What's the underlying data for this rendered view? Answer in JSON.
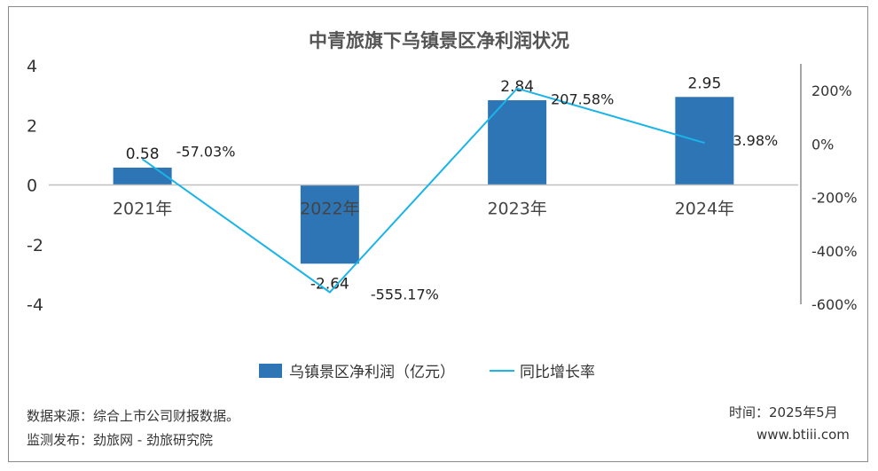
{
  "chart_data": {
    "type": "bar+line",
    "title": "中青旅旗下乌镇景区净利润状况",
    "categories": [
      "2021年",
      "2022年",
      "2023年",
      "2024年"
    ],
    "series": [
      {
        "name": "乌镇景区净利润（亿元）",
        "kind": "bar",
        "axis": "left",
        "color": "#2e75b6",
        "values": [
          0.58,
          -2.64,
          2.84,
          2.95
        ],
        "labels": [
          "0.58",
          "-2.64",
          "2.84",
          "2.95"
        ]
      },
      {
        "name": "同比增长率",
        "kind": "line",
        "axis": "right",
        "color": "#1ab4e8",
        "values": [
          -57.03,
          -555.17,
          207.58,
          3.98
        ],
        "labels": [
          "-57.03%",
          "-555.17%",
          "207.58%",
          "3.98%"
        ]
      }
    ],
    "left_axis": {
      "ylim": [
        -4,
        4
      ],
      "ticks": [
        "4",
        "2",
        "0",
        "-2",
        "-4"
      ]
    },
    "right_axis": {
      "ylim": [
        -600,
        200
      ],
      "ticks": [
        "200%",
        "0%",
        "-200%",
        "-400%",
        "-600%"
      ]
    },
    "grid": false,
    "legend_position": "bottom"
  },
  "footer": {
    "source": "数据来源：综合上市公司财报数据。",
    "publisher": "监测发布：劲旅网 - 劲旅研究院",
    "time": "时间：2025年5月",
    "site": "www.btiii.com"
  }
}
